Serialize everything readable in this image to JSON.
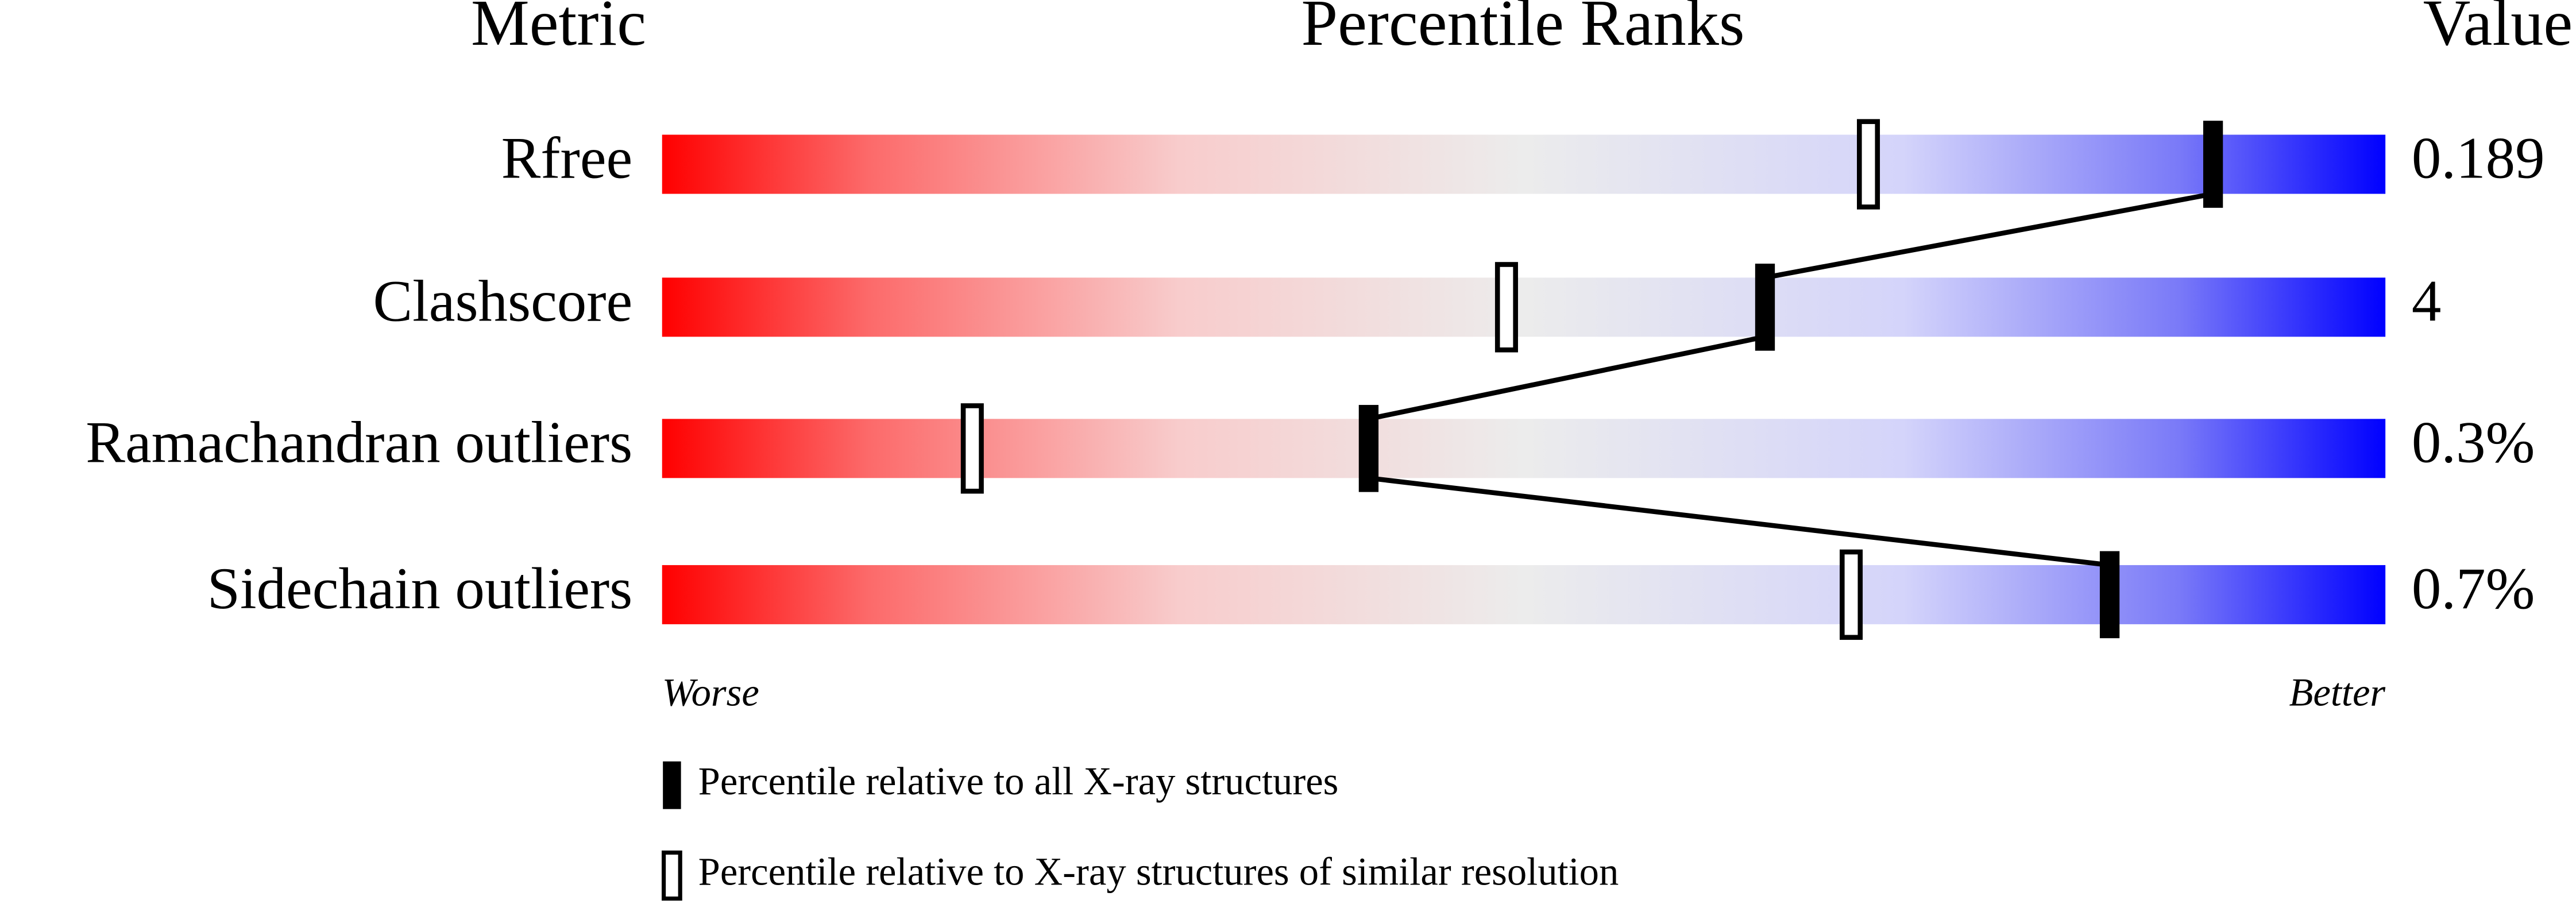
{
  "chart_data": {
    "type": "percentile",
    "column_headers": [
      "Metric",
      "Percentile Ranks",
      "Value"
    ],
    "categories": [
      "Rfree",
      "Clashscore",
      "Ramachandran outliers",
      "Sidechain outliers"
    ],
    "metric_values": [
      "0.189",
      "4",
      "0.3%",
      "0.7%"
    ],
    "xlim": [
      0,
      100
    ],
    "series": [
      {
        "name": "Percentile relative to all X-ray structures",
        "color": "#000000",
        "values": [
          90,
          64,
          41,
          84
        ]
      },
      {
        "name": "Percentile relative to X-ray structures of similar resolution",
        "color": "#ffffff",
        "values": [
          70,
          49,
          18,
          69
        ]
      }
    ],
    "scale_labels": [
      "Worse",
      "Better"
    ]
  }
}
